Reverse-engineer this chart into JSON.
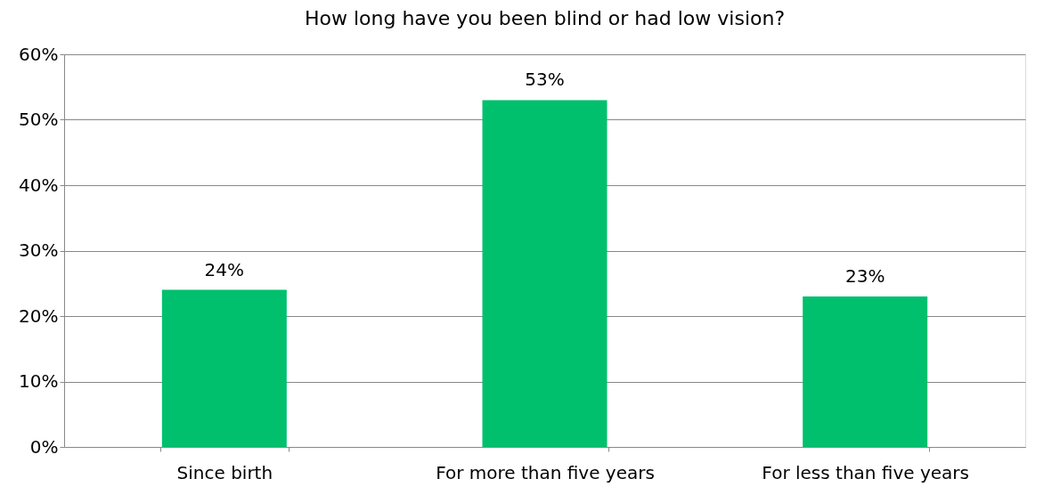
{
  "chart_data": {
    "type": "bar",
    "title": "How long have you been blind or had low vision?",
    "categories": [
      "Since birth",
      "For more than five years",
      "For less than five years"
    ],
    "values": [
      24,
      53,
      23
    ],
    "color": "#00c06e",
    "value_labels": [
      "24%",
      "53%",
      "23%"
    ],
    "ylim": [
      0,
      60
    ],
    "yticks": [
      {
        "value": 0,
        "label": "0%"
      },
      {
        "value": 10,
        "label": "10%"
      },
      {
        "value": 20,
        "label": "20%"
      },
      {
        "value": 30,
        "label": "30%"
      },
      {
        "value": 40,
        "label": "40%"
      },
      {
        "value": 50,
        "label": "50%"
      },
      {
        "value": 60,
        "label": "60%"
      }
    ],
    "grid": "y"
  }
}
